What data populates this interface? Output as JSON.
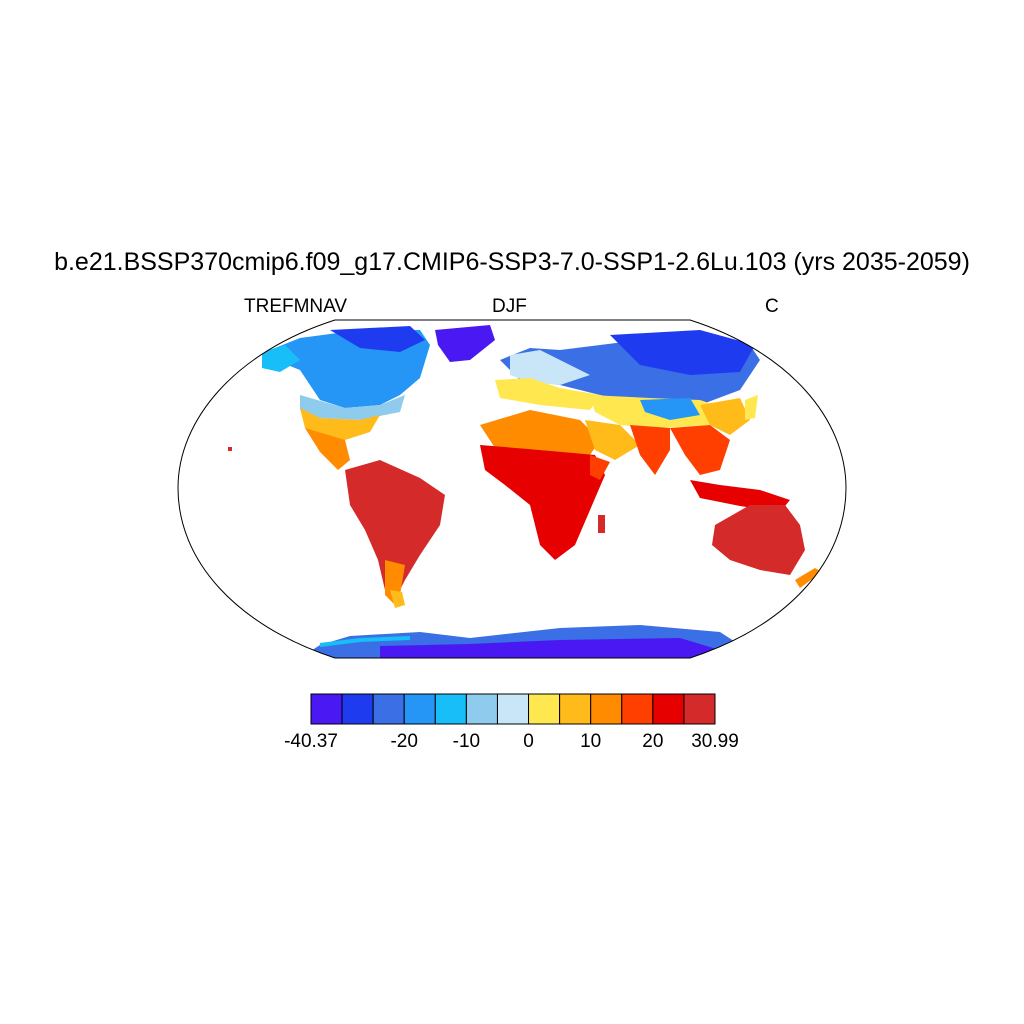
{
  "title": "b.e21.BSSP370cmip6.f09_g17.CMIP6-SSP3-7.0-SSP1-2.6Lu.103 (yrs 2035-2059)",
  "variable": "TREFMNAV",
  "season": "DJF",
  "units": "C",
  "colorbar": {
    "colors": [
      "#4a18f2",
      "#1f3bf0",
      "#3a6fe6",
      "#2596f5",
      "#17bef7",
      "#8fcbed",
      "#c9e6f8",
      "#ffe84f",
      "#ffbb1a",
      "#ff8b00",
      "#ff3f00",
      "#e60000",
      "#d42a2a"
    ],
    "labels": [
      {
        "text": "-40.37",
        "edge": 0
      },
      {
        "text": "-20",
        "edge": 3
      },
      {
        "text": "-10",
        "edge": 5
      },
      {
        "text": "0",
        "edge": 7
      },
      {
        "text": "10",
        "edge": 9
      },
      {
        "text": "20",
        "edge": 11
      },
      {
        "text": "30.99",
        "edge": 13
      }
    ]
  }
}
